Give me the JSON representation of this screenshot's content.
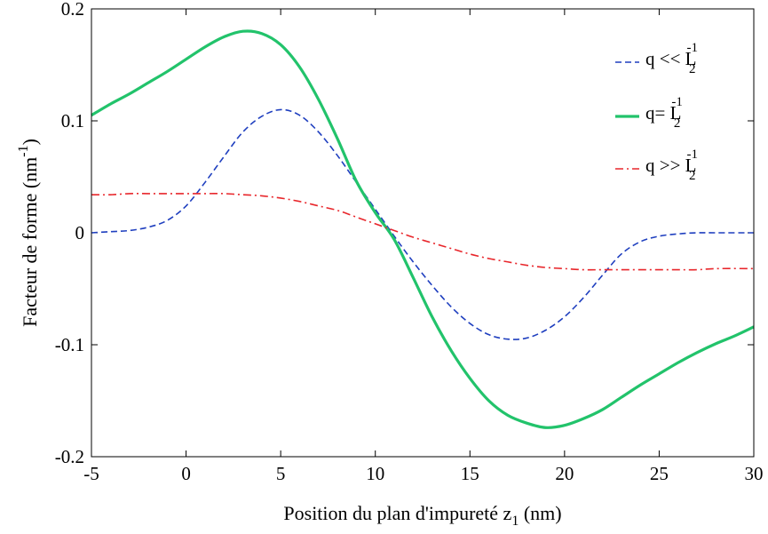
{
  "chart_data": {
    "type": "line",
    "xlabel": {
      "main": "Position du plan d'impureté z",
      "sub": "1",
      "tail": " (nm)"
    },
    "ylabel": {
      "main": "Facteur de forme (nm",
      "sup": "-1",
      "tail": ")"
    },
    "xlim": [
      -5,
      30
    ],
    "ylim": [
      -0.2,
      0.2
    ],
    "xticks": [
      {
        "value": -5,
        "label": "-5"
      },
      {
        "value": 0,
        "label": "0"
      },
      {
        "value": 5,
        "label": "5"
      },
      {
        "value": 10,
        "label": "10"
      },
      {
        "value": 15,
        "label": "15"
      },
      {
        "value": 20,
        "label": "20"
      },
      {
        "value": 25,
        "label": "25"
      },
      {
        "value": 30,
        "label": "30"
      }
    ],
    "yticks": [
      {
        "value": -0.2,
        "label": "-0.2"
      },
      {
        "value": -0.1,
        "label": "-0.1"
      },
      {
        "value": 0,
        "label": "0"
      },
      {
        "value": 0.1,
        "label": "0.1"
      },
      {
        "value": 0.2,
        "label": "0.2"
      }
    ],
    "grid": false,
    "legend_position": "top-right",
    "series": [
      {
        "name": "q << L",
        "sub": "2",
        "sup": "-1",
        "color": "#1f3fbf",
        "style": "dashed",
        "points": [
          [
            -5,
            0.0
          ],
          [
            -4,
            0.001
          ],
          [
            -3,
            0.002
          ],
          [
            -2,
            0.005
          ],
          [
            -1,
            0.011
          ],
          [
            0,
            0.024
          ],
          [
            1,
            0.045
          ],
          [
            2,
            0.068
          ],
          [
            3,
            0.09
          ],
          [
            4,
            0.104
          ],
          [
            5,
            0.11
          ],
          [
            6,
            0.105
          ],
          [
            7,
            0.09
          ],
          [
            8,
            0.069
          ],
          [
            9,
            0.045
          ],
          [
            10,
            0.021
          ],
          [
            11,
            -0.003
          ],
          [
            12,
            -0.026
          ],
          [
            13,
            -0.047
          ],
          [
            14,
            -0.066
          ],
          [
            15,
            -0.081
          ],
          [
            16,
            -0.091
          ],
          [
            17,
            -0.095
          ],
          [
            18,
            -0.094
          ],
          [
            19,
            -0.087
          ],
          [
            20,
            -0.075
          ],
          [
            21,
            -0.058
          ],
          [
            22,
            -0.038
          ],
          [
            23,
            -0.019
          ],
          [
            24,
            -0.008
          ],
          [
            25,
            -0.003
          ],
          [
            26,
            -0.001
          ],
          [
            27,
            0.0
          ],
          [
            28,
            0.0
          ],
          [
            30,
            0.0
          ]
        ]
      },
      {
        "name": "q= L",
        "sub": "2",
        "sup": "-1",
        "color": "#22c36b",
        "style": "solid",
        "points": [
          [
            -5,
            0.105
          ],
          [
            -4,
            0.115
          ],
          [
            -3,
            0.124
          ],
          [
            -2,
            0.134
          ],
          [
            -1,
            0.144
          ],
          [
            0,
            0.155
          ],
          [
            1,
            0.166
          ],
          [
            2,
            0.175
          ],
          [
            3,
            0.18
          ],
          [
            4,
            0.178
          ],
          [
            5,
            0.168
          ],
          [
            6,
            0.148
          ],
          [
            7,
            0.119
          ],
          [
            8,
            0.084
          ],
          [
            9,
            0.046
          ],
          [
            10,
            0.018
          ],
          [
            11,
            -0.006
          ],
          [
            12,
            -0.04
          ],
          [
            13,
            -0.075
          ],
          [
            14,
            -0.105
          ],
          [
            15,
            -0.13
          ],
          [
            16,
            -0.15
          ],
          [
            17,
            -0.163
          ],
          [
            18,
            -0.17
          ],
          [
            19,
            -0.174
          ],
          [
            20,
            -0.172
          ],
          [
            21,
            -0.166
          ],
          [
            22,
            -0.158
          ],
          [
            23,
            -0.147
          ],
          [
            24,
            -0.136
          ],
          [
            25,
            -0.126
          ],
          [
            26,
            -0.116
          ],
          [
            27,
            -0.107
          ],
          [
            28,
            -0.099
          ],
          [
            29,
            -0.092
          ],
          [
            30,
            -0.084
          ]
        ]
      },
      {
        "name": "q >> L",
        "sub": "2",
        "sup": "-1",
        "color": "#e8262b",
        "style": "dashdot",
        "points": [
          [
            -5,
            0.034
          ],
          [
            -4,
            0.034
          ],
          [
            -3,
            0.035
          ],
          [
            -2,
            0.035
          ],
          [
            -1,
            0.035
          ],
          [
            0,
            0.035
          ],
          [
            1,
            0.035
          ],
          [
            2,
            0.035
          ],
          [
            3,
            0.034
          ],
          [
            4,
            0.033
          ],
          [
            5,
            0.031
          ],
          [
            6,
            0.028
          ],
          [
            7,
            0.024
          ],
          [
            8,
            0.02
          ],
          [
            9,
            0.014
          ],
          [
            10,
            0.008
          ],
          [
            11,
            0.002
          ],
          [
            12,
            -0.004
          ],
          [
            13,
            -0.009
          ],
          [
            14,
            -0.014
          ],
          [
            15,
            -0.019
          ],
          [
            16,
            -0.023
          ],
          [
            17,
            -0.026
          ],
          [
            18,
            -0.029
          ],
          [
            19,
            -0.031
          ],
          [
            20,
            -0.032
          ],
          [
            21,
            -0.033
          ],
          [
            22,
            -0.033
          ],
          [
            23,
            -0.033
          ],
          [
            24,
            -0.033
          ],
          [
            25,
            -0.033
          ],
          [
            26,
            -0.033
          ],
          [
            27,
            -0.033
          ],
          [
            28,
            -0.032
          ],
          [
            30,
            -0.032
          ]
        ]
      }
    ]
  }
}
